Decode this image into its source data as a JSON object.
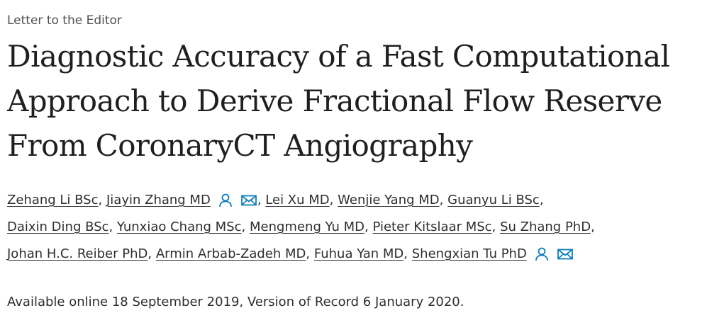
{
  "article_type": "Letter to the Editor",
  "title_lines": [
    "Diagnostic Accuracy of a Fast Computational",
    "Approach to Derive Fractional Flow Reserve",
    "From CoronaryCT Angiography"
  ],
  "authors": [
    {
      "name": "Zehang Li BSc"
    },
    {
      "name": "Jiayin Zhang MD",
      "icons": [
        "person-icon",
        "envelope-icon"
      ]
    },
    {
      "name": "Lei Xu MD"
    },
    {
      "name": "Wenjie Yang MD"
    },
    {
      "name": "Guanyu Li BSc"
    },
    {
      "name": "Daixin Ding BSc"
    },
    {
      "name": "Yunxiao Chang MSc"
    },
    {
      "name": "Mengmeng Yu MD"
    },
    {
      "name": "Pieter Kitslaar MSc"
    },
    {
      "name": "Su Zhang PhD"
    },
    {
      "name": "Johan H.C. Reiber PhD"
    },
    {
      "name": "Armin Arbab-Zadeh MD"
    },
    {
      "name": "Fuhua Yan MD"
    },
    {
      "name": "Shengxian Tu PhD",
      "icons": [
        "person-icon",
        "envelope-icon"
      ]
    }
  ],
  "separator": ",",
  "availability": "Available online 18 September 2019, Version of Record 6 January 2020.",
  "colors": {
    "text": "#2e2e2e",
    "muted": "#505050",
    "icon_blue": "#0c7dbb"
  }
}
